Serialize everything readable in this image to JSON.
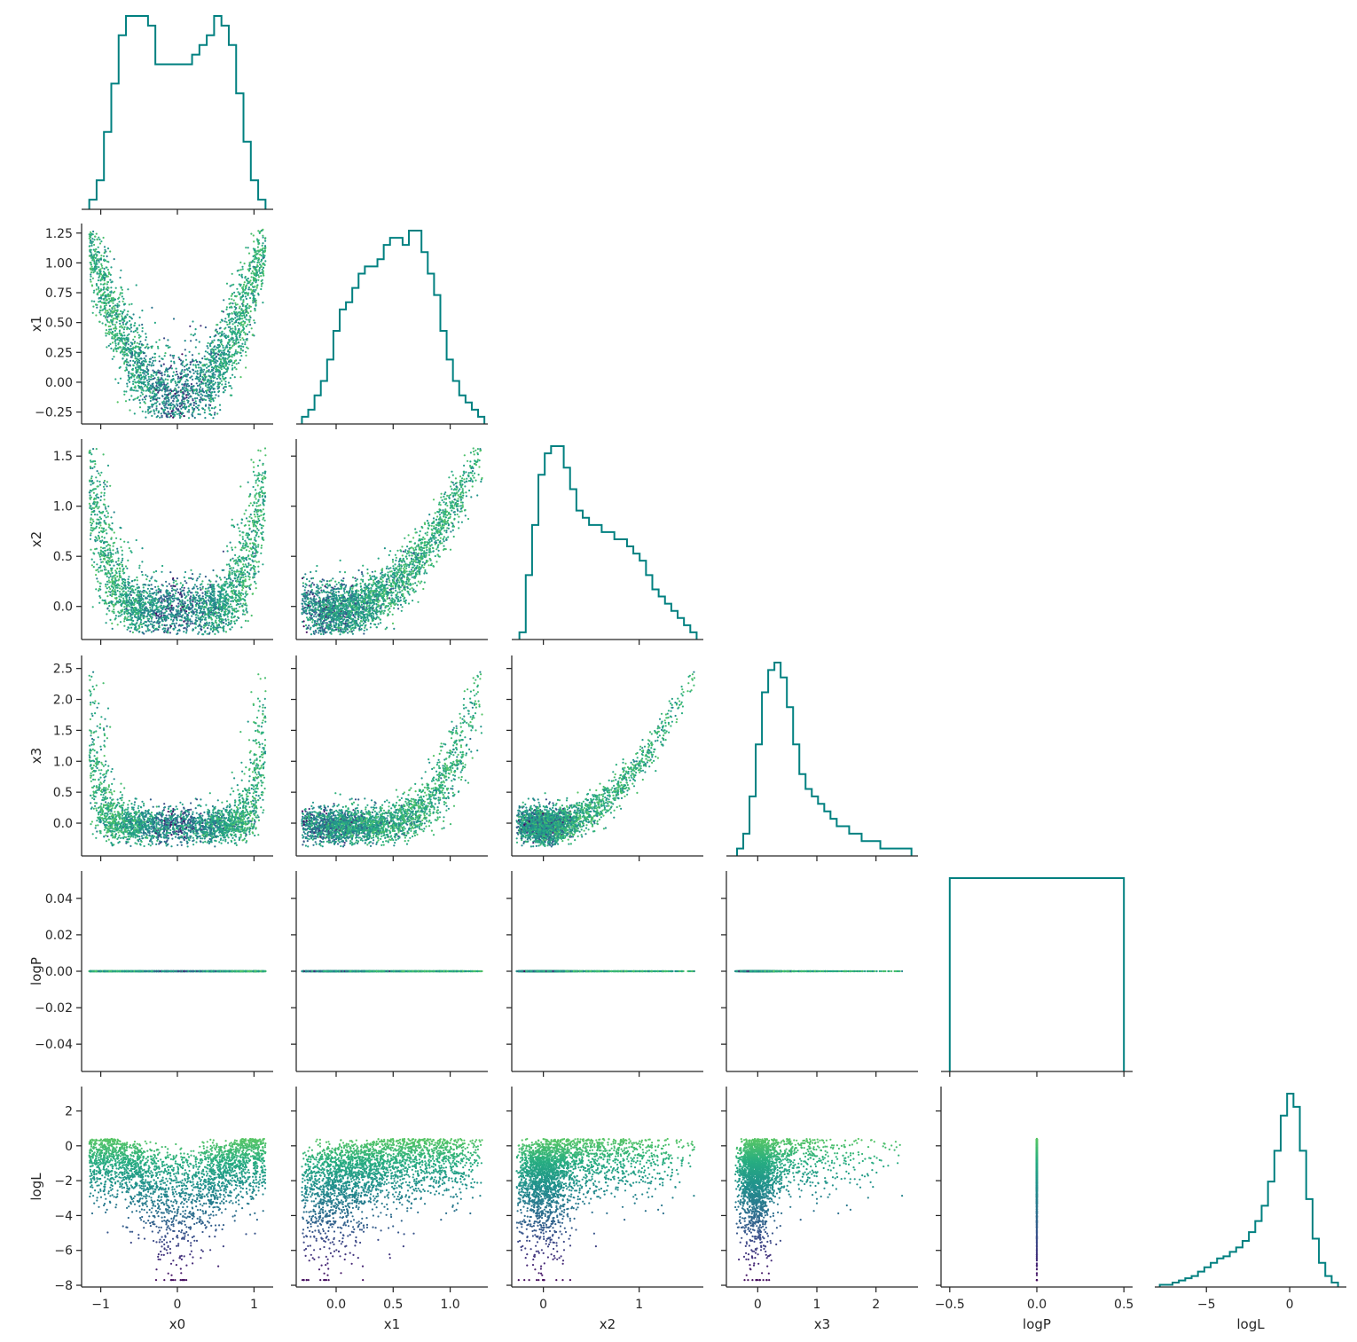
{
  "chart_data": {
    "type": "scatter",
    "title": "",
    "variables": [
      "x0",
      "x1",
      "x2",
      "x3",
      "logP",
      "logL"
    ],
    "colormap": "viridis",
    "color_by": "logL",
    "hist_color": "#008080",
    "axes": {
      "x0": {
        "range": [
          -1.25,
          1.25
        ],
        "ticks": [
          -1,
          0,
          1
        ],
        "tick_labels": [
          "−1",
          "0",
          "1"
        ]
      },
      "x1": {
        "range": [
          -0.35,
          1.33
        ],
        "ticks": [
          -0.25,
          0.0,
          0.25,
          0.5,
          0.75,
          1.0,
          1.25
        ],
        "tick_labels": [
          "−0.25",
          "0.00",
          "0.25",
          "0.50",
          "0.75",
          "1.00",
          "1.25"
        ],
        "x_ticks": [
          0.0,
          0.5,
          1.0
        ],
        "x_tick_labels": [
          "0.0",
          "0.5",
          "1.0"
        ]
      },
      "x2": {
        "range": [
          -0.33,
          1.67
        ],
        "ticks": [
          0.0,
          0.5,
          1.0,
          1.5
        ],
        "tick_labels": [
          "0.0",
          "0.5",
          "1.0",
          "1.5"
        ],
        "x_ticks": [
          0,
          1
        ],
        "x_tick_labels": [
          "0",
          "1"
        ]
      },
      "x3": {
        "range": [
          -0.53,
          2.71
        ],
        "ticks": [
          0.0,
          0.5,
          1.0,
          1.5,
          2.0,
          2.5
        ],
        "tick_labels": [
          "0.0",
          "0.5",
          "1.0",
          "1.5",
          "2.0",
          "2.5"
        ],
        "x_ticks": [
          0,
          1,
          2
        ],
        "x_tick_labels": [
          "0",
          "1",
          "2"
        ]
      },
      "logP": {
        "range": [
          -0.055,
          0.055
        ],
        "ticks": [
          -0.04,
          -0.02,
          0.0,
          0.02,
          0.04
        ],
        "tick_labels": [
          "−0.04",
          "−0.02",
          "0.00",
          "0.02",
          "0.04"
        ],
        "x_ticks": [
          -0.5,
          0.0,
          0.5
        ],
        "x_tick_labels": [
          "−0.5",
          "0.0",
          "0.5"
        ],
        "x_range": [
          -0.55,
          0.55
        ]
      },
      "logL": {
        "range": [
          -8.1,
          3.4
        ],
        "ticks": [
          -8,
          -6,
          -4,
          -2,
          0,
          2
        ],
        "tick_labels": [
          "−8",
          "−6",
          "−4",
          "−2",
          "0",
          "2"
        ],
        "x_ticks": [
          -5,
          0
        ],
        "x_tick_labels": [
          "−5",
          "0"
        ]
      }
    },
    "histograms": {
      "x0": {
        "edges": [
          -1.15,
          1.15
        ],
        "counts": [
          1,
          3,
          8,
          13,
          18,
          20,
          20,
          20,
          19,
          15,
          15,
          15,
          15,
          15,
          16,
          17,
          18,
          20,
          19,
          17,
          12,
          7,
          3,
          1
        ]
      },
      "x1": {
        "edges": [
          -0.3,
          1.3
        ],
        "counts": [
          1,
          2,
          4,
          6,
          9,
          13,
          16,
          17,
          19,
          21,
          22,
          22,
          23,
          25,
          26,
          26,
          25,
          27,
          27,
          24,
          21,
          18,
          13,
          9,
          6,
          4,
          3,
          2,
          1
        ]
      },
      "x2": {
        "edges": [
          -0.25,
          1.6
        ],
        "counts": [
          1,
          9,
          16,
          23,
          26,
          27,
          27,
          24,
          21,
          18,
          17,
          16,
          16,
          15,
          15,
          14,
          14,
          13,
          12,
          11,
          9,
          7,
          6,
          5,
          4,
          3,
          2,
          1
        ]
      },
      "x3": {
        "edges": [
          -0.35,
          2.6
        ],
        "counts": [
          1,
          3,
          8,
          15,
          22,
          25,
          26,
          24,
          20,
          15,
          11,
          9,
          8,
          7,
          6,
          5,
          4,
          4,
          3,
          3,
          2,
          2,
          2,
          1,
          1,
          1,
          1,
          1
        ]
      },
      "logP": {
        "edges": [
          -0.5,
          0.5
        ],
        "counts": [
          1
        ]
      },
      "logL": {
        "edges": [
          -7.8,
          2.9
        ],
        "counts": [
          1,
          1,
          2,
          3,
          4,
          5,
          7,
          9,
          11,
          13,
          14,
          16,
          18,
          21,
          25,
          30,
          37,
          48,
          62,
          78,
          88,
          82,
          62,
          40,
          22,
          11,
          5,
          2
        ]
      }
    }
  }
}
